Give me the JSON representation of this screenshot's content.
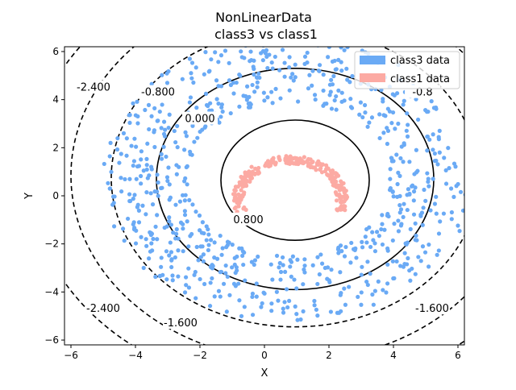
{
  "chart_data": {
    "type": "scatter",
    "title": [
      "NonLinearData",
      "class3 vs  class1"
    ],
    "xlabel": "X",
    "ylabel": "Y",
    "xlim": [
      -6.2,
      6.2
    ],
    "ylim": [
      -6.2,
      6.2
    ],
    "xticks": [
      -6,
      -4,
      -2,
      0,
      2,
      4,
      6
    ],
    "yticks": [
      -6,
      -4,
      -2,
      0,
      2,
      4,
      6
    ],
    "xtick_labels": [
      "−6",
      "−4",
      "−2",
      "0",
      "2",
      "4",
      "6"
    ],
    "ytick_labels": [
      "−6",
      "−4",
      "−2",
      "0",
      "2",
      "4",
      "6"
    ],
    "grid": false,
    "legend": {
      "placement": "top-right",
      "entries": [
        {
          "label": "class3 data",
          "color": "#6aaaf5"
        },
        {
          "label": "class1 data",
          "color": "#fcaaa3"
        }
      ]
    },
    "series": [
      {
        "name": "class3 data",
        "color": "#6aaaf5",
        "shape": "ring",
        "center": [
          0.75,
          0.7
        ],
        "inner_radius": 3.2,
        "outer_radius": 5.9,
        "approx_points": 800
      },
      {
        "name": "class1 data",
        "color": "#fcaaa3",
        "shape": "upper-arc",
        "center": [
          0.8,
          -0.1
        ],
        "radius": 1.6,
        "theta_deg": [
          -20,
          200
        ],
        "approx_points": 250
      }
    ],
    "contours": [
      {
        "level": 0.8,
        "label": "0.800",
        "style": "solid",
        "cx": 0.95,
        "cy": 0.65,
        "rx": 2.3,
        "ry": 2.5,
        "label_at": [
          -0.5,
          -1.0
        ]
      },
      {
        "level": 0.0,
        "label": "0.000",
        "style": "solid",
        "cx": 0.95,
        "cy": 0.7,
        "rx": 4.3,
        "ry": 4.6,
        "label_at": [
          -2.0,
          3.2
        ]
      },
      {
        "level": -0.8,
        "label": "-0.800",
        "style": "dashed",
        "cx": 0.95,
        "cy": 0.75,
        "rx": 5.7,
        "ry": 6.2,
        "label_at": [
          -3.3,
          4.3
        ]
      },
      {
        "level": -1.6,
        "label": "-1.600",
        "style": "dashed",
        "cx": 0.95,
        "cy": 0.85,
        "rx": 6.95,
        "ry": 7.7,
        "label_at": [
          -2.6,
          -5.3
        ]
      },
      {
        "level": -2.4,
        "label": "-2.400",
        "style": "dashed",
        "cx": 0.95,
        "cy": 0.9,
        "rx": 8.25,
        "ry": 9.0,
        "label_at": [
          -5.3,
          4.5
        ]
      }
    ],
    "extra_contour_labels": [
      {
        "label": "-2.400",
        "at": [
          -5.0,
          -4.7
        ]
      },
      {
        "label": "-1.600",
        "at": [
          5.2,
          -4.7
        ]
      },
      {
        "label": "-0.8",
        "at": [
          4.9,
          4.3
        ]
      }
    ]
  }
}
